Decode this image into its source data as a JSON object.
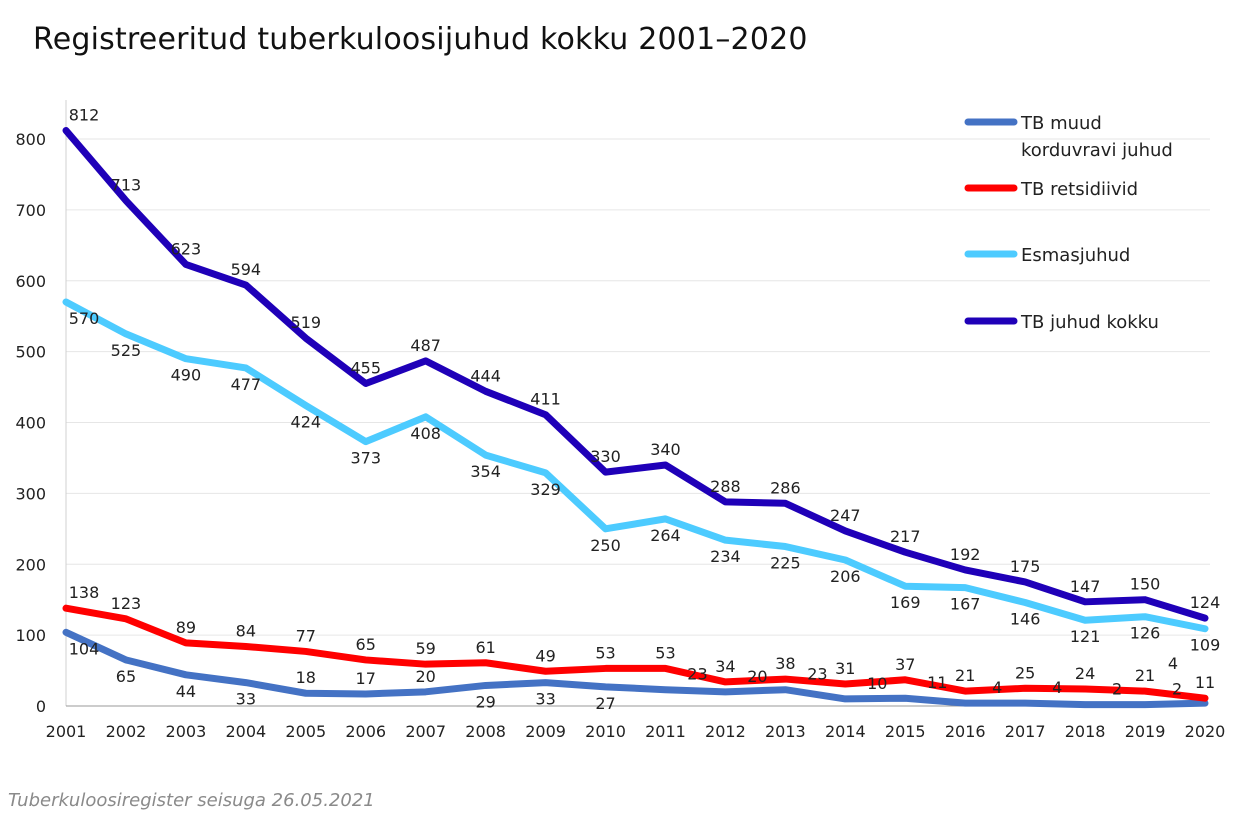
{
  "chart_data": {
    "type": "line",
    "title": "Registreeritud tuberkuloosijuhud kokku 2001–2020",
    "source": "Tuberkuloosiregister seisuga 26.05.2021",
    "xlabel": "",
    "ylabel": "",
    "ylim": [
      0,
      800
    ],
    "yticks": [
      0,
      100,
      200,
      300,
      400,
      500,
      600,
      700,
      800
    ],
    "grid": true,
    "legend_placement": "top-right",
    "categories": [
      "2001",
      "2002",
      "2003",
      "2004",
      "2005",
      "2006",
      "2007",
      "2008",
      "2009",
      "2010",
      "2011",
      "2012",
      "2013",
      "2014",
      "2015",
      "2016",
      "2017",
      "2018",
      "2019",
      "2020"
    ],
    "series": [
      {
        "name": "TB muud korduvravi juhud",
        "legend_lines": [
          "TB muud",
          "korduvravi juhud"
        ],
        "color": "#4472C4",
        "values": [
          104,
          65,
          44,
          33,
          18,
          17,
          20,
          29,
          33,
          27,
          23,
          20,
          23,
          10,
          11,
          4,
          4,
          2,
          2,
          4
        ]
      },
      {
        "name": "TB retsidiivid",
        "legend_lines": [
          "TB retsidiivid"
        ],
        "color": "#FF0000",
        "values": [
          138,
          123,
          89,
          84,
          77,
          65,
          59,
          61,
          49,
          53,
          53,
          34,
          38,
          31,
          37,
          21,
          25,
          24,
          21,
          11
        ]
      },
      {
        "name": "Esmasjuhud",
        "legend_lines": [
          "Esmasjuhud"
        ],
        "color": "#4DCBFF",
        "values": [
          570,
          525,
          490,
          477,
          424,
          373,
          408,
          354,
          329,
          250,
          264,
          234,
          225,
          206,
          169,
          167,
          146,
          121,
          126,
          109
        ]
      },
      {
        "name": "TB juhud kokku",
        "legend_lines": [
          "TB juhud kokku"
        ],
        "color": "#1F00B8",
        "values": [
          812,
          713,
          623,
          594,
          519,
          455,
          487,
          444,
          411,
          330,
          340,
          288,
          286,
          247,
          217,
          192,
          175,
          147,
          150,
          124
        ]
      }
    ]
  }
}
